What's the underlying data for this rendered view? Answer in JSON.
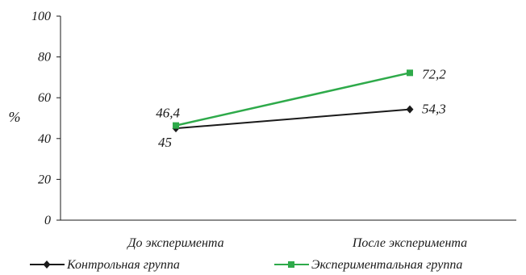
{
  "chart_data": {
    "type": "line",
    "title": "",
    "xlabel": "",
    "ylabel": "%",
    "ylim": [
      0,
      100
    ],
    "yticks": [
      "0",
      "20",
      "40",
      "60",
      "80",
      "100"
    ],
    "categories": [
      "До эксперимента",
      "После эксперимента"
    ],
    "grid": false,
    "legend_position": "bottom",
    "series": [
      {
        "name": "Контрольная группа",
        "values": [
          45,
          54.3
        ],
        "labels": [
          "45",
          "54,3"
        ],
        "color": "#1a1a1a",
        "marker": "diamond"
      },
      {
        "name": "Экспериментальная группа",
        "values": [
          46.4,
          72.2
        ],
        "labels": [
          "46,4",
          "72,2"
        ],
        "color": "#2eaa4a",
        "marker": "square"
      }
    ]
  }
}
